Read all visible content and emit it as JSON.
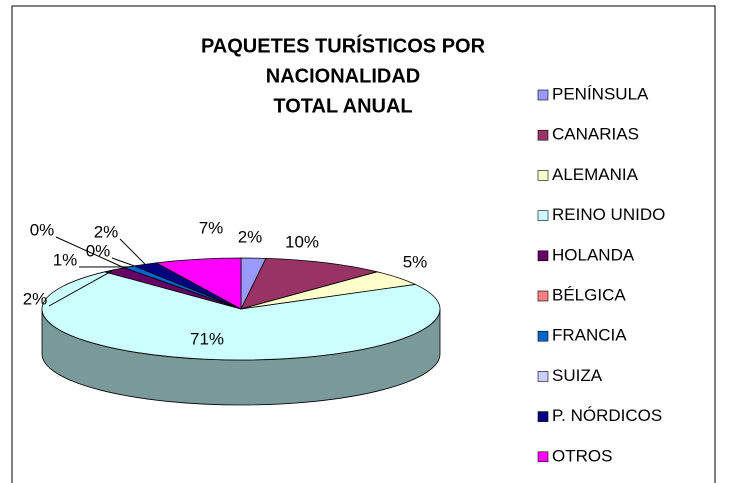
{
  "chart_data": {
    "type": "pie3d",
    "title": [
      "PAQUETES TURÍSTICOS POR",
      "NACIONALIDAD",
      "TOTAL ANUAL"
    ],
    "categories": [
      "PENÍNSULA",
      "CANARIAS",
      "ALEMANIA",
      "REINO UNIDO",
      "HOLANDA",
      "BÉLGICA",
      "FRANCIA",
      "SUIZA",
      "P. NÓRDICOS",
      "OTROS"
    ],
    "values": [
      2,
      10,
      5,
      71,
      2,
      0,
      1,
      0,
      2,
      7
    ],
    "value_labels": [
      "2%",
      "10%",
      "5%",
      "71%",
      "2%",
      "0%",
      "1%",
      "0%",
      "2%",
      "7%"
    ],
    "colors": [
      "#9999ff",
      "#993366",
      "#ffffcc",
      "#ccffff",
      "#660066",
      "#ff8080",
      "#0066cc",
      "#ccccff",
      "#000080",
      "#ff00ff"
    ],
    "legend": "right"
  }
}
